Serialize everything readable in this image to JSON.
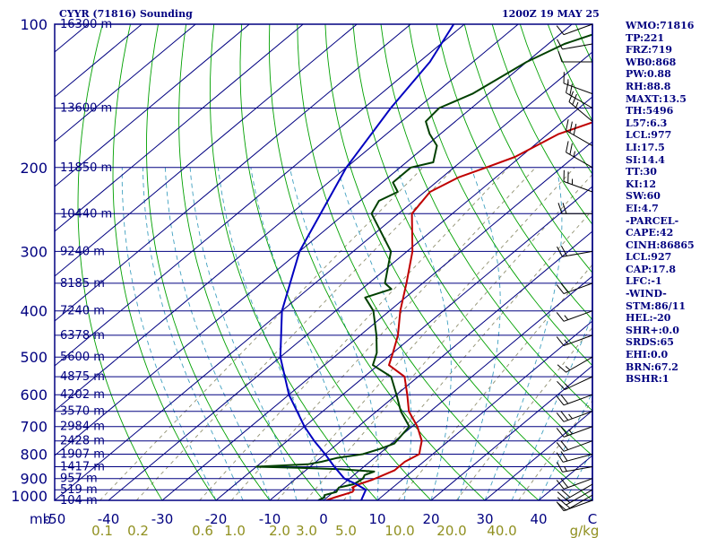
{
  "header": {
    "station": "CYYR (71816) Sounding",
    "time": "1200Z 19 MAY 25"
  },
  "indices": [
    "WMO:71816",
    "TP:221",
    "FRZ:719",
    "WB0:868",
    "PW:0.88",
    "RH:88.8",
    "MAXT:13.5",
    "TH:5496",
    "L57:6.3",
    "LCL:977",
    "LI:17.5",
    "SI:14.4",
    "TT:30",
    "KI:12",
    "SW:60",
    "EI:4.7",
    "-PARCEL-",
    "CAPE:42",
    "CINH:86865",
    "LCL:927",
    "CAP:17.8",
    "LFC:-1",
    "-WIND-",
    "STM:86/11",
    "HEL:-20",
    "SHR+:0.0",
    "SRDS:65",
    "EHI:0.0",
    "BRN:67.2",
    "BSHR:1"
  ],
  "colors": {
    "axes": "#000080",
    "isobar": "#000080",
    "isotherm": "#000080",
    "dry_adiabat": "#00a000",
    "moist_adiabat": "#40a0c0",
    "mixing_ratio": "#909070",
    "temperature": "#c00000",
    "dewpoint": "#004000",
    "parcel": "#0000c0",
    "wind": "#000000",
    "mixing_label": "#909020"
  },
  "chart_data": {
    "type": "line",
    "title": "CYYR (71816) Sounding",
    "xlabel": "C",
    "ylabel": "mb",
    "xlim": [
      -50,
      50
    ],
    "ylim": [
      1000,
      100
    ],
    "y_scale": "log",
    "grid": true,
    "pressure_ticks": [
      100,
      200,
      300,
      400,
      500,
      600,
      700,
      800,
      900,
      1000
    ],
    "temperature_ticks": [
      -50,
      -40,
      -30,
      -20,
      -10,
      0,
      10,
      20,
      30,
      40
    ],
    "mixing_ratio_ticks": [
      "0.1",
      "0.2",
      "0.6",
      "1.0",
      "2.0",
      "3.0",
      "5.0",
      "10.0",
      "20.0",
      "40.0",
      "g/kg"
    ],
    "mixing_ratio_values": [
      0.1,
      0.2,
      0.6,
      1.0,
      2.0,
      3.0,
      5.0,
      10.0,
      20.0,
      40.0
    ],
    "height_labels": [
      {
        "p": 1000,
        "label": "104 m"
      },
      {
        "p": 950,
        "label": "519 m"
      },
      {
        "p": 900,
        "label": "957 m"
      },
      {
        "p": 850,
        "label": "1417 m"
      },
      {
        "p": 800,
        "label": "1907 m"
      },
      {
        "p": 750,
        "label": "2428 m"
      },
      {
        "p": 700,
        "label": "2984 m"
      },
      {
        "p": 650,
        "label": "3570 m"
      },
      {
        "p": 600,
        "label": "4202 m"
      },
      {
        "p": 550,
        "label": "4875 m"
      },
      {
        "p": 500,
        "label": "5600 m"
      },
      {
        "p": 450,
        "label": "6378 m"
      },
      {
        "p": 400,
        "label": "7240 m"
      },
      {
        "p": 350,
        "label": "8185 m"
      },
      {
        "p": 300,
        "label": "9240 m"
      },
      {
        "p": 250,
        "label": "10440 m"
      },
      {
        "p": 200,
        "label": "11850 m"
      },
      {
        "p": 150,
        "label": "13600 m"
      },
      {
        "p": 100,
        "label": "16300 m"
      }
    ],
    "series": [
      {
        "key": "temperature",
        "points": [
          [
            1000,
            0.5
          ],
          [
            985,
            1.5
          ],
          [
            960,
            3.5
          ],
          [
            950,
            3.3
          ],
          [
            940,
            2.5
          ],
          [
            925,
            3.0
          ],
          [
            905,
            4.5
          ],
          [
            885,
            5.5
          ],
          [
            865,
            6.5
          ],
          [
            830,
            6.5
          ],
          [
            800,
            7.5
          ],
          [
            780,
            6.5
          ],
          [
            750,
            5.0
          ],
          [
            700,
            1.0
          ],
          [
            650,
            -4.0
          ],
          [
            600,
            -8.0
          ],
          [
            550,
            -12.5
          ],
          [
            520,
            -18.0
          ],
          [
            490,
            -20.0
          ],
          [
            450,
            -23.0
          ],
          [
            400,
            -28.0
          ],
          [
            350,
            -33.0
          ],
          [
            300,
            -39.0
          ],
          [
            250,
            -47.5
          ],
          [
            225,
            -49.0
          ],
          [
            210,
            -47.0
          ],
          [
            200,
            -44.0
          ],
          [
            190,
            -41.0
          ],
          [
            170,
            -38.0
          ],
          [
            160,
            -34.0
          ],
          [
            150,
            -34.0
          ],
          [
            140,
            -30.5
          ],
          [
            130,
            -29.0
          ],
          [
            120,
            -28.0
          ],
          [
            115,
            -28.0
          ],
          [
            110,
            -26.0
          ],
          [
            103,
            -26.5
          ],
          [
            100,
            -26.0
          ]
        ]
      },
      {
        "key": "dewpoint",
        "points": [
          [
            1000,
            -1.0
          ],
          [
            985,
            -0.5
          ],
          [
            975,
            -1.0
          ],
          [
            960,
            0.5
          ],
          [
            940,
            0.0
          ],
          [
            925,
            2.0
          ],
          [
            900,
            2.5
          ],
          [
            885,
            2.0
          ],
          [
            870,
            3.0
          ],
          [
            860,
            -4.0
          ],
          [
            855,
            -11.0
          ],
          [
            850,
            -20.0
          ],
          [
            840,
            -11.0
          ],
          [
            830,
            -9.0
          ],
          [
            815,
            -7.0
          ],
          [
            800,
            -3.0
          ],
          [
            780,
            -1.0
          ],
          [
            760,
            0.5
          ],
          [
            700,
            -0.5
          ],
          [
            650,
            -5.5
          ],
          [
            600,
            -10.0
          ],
          [
            550,
            -15.0
          ],
          [
            520,
            -21.0
          ],
          [
            490,
            -23.0
          ],
          [
            450,
            -27.0
          ],
          [
            400,
            -33.0
          ],
          [
            375,
            -37.5
          ],
          [
            360,
            -34.5
          ],
          [
            350,
            -37.0
          ],
          [
            300,
            -43.0
          ],
          [
            250,
            -55.0
          ],
          [
            235,
            -56.5
          ],
          [
            225,
            -55.0
          ],
          [
            215,
            -58.0
          ],
          [
            200,
            -58.0
          ],
          [
            195,
            -55.0
          ],
          [
            180,
            -58.0
          ],
          [
            170,
            -62.0
          ],
          [
            160,
            -65.5
          ],
          [
            150,
            -66.0
          ],
          [
            140,
            -63.0
          ],
          [
            120,
            -60.0
          ],
          [
            110,
            -57.0
          ],
          [
            103,
            -52.5
          ],
          [
            100,
            -51.0
          ]
        ]
      },
      {
        "key": "parcel",
        "points": [
          [
            1000,
            7.0
          ],
          [
            950,
            5.5
          ],
          [
            925,
            2.5
          ],
          [
            900,
            -1.0
          ],
          [
            850,
            -5.5
          ],
          [
            800,
            -10.0
          ],
          [
            750,
            -15.0
          ],
          [
            700,
            -20.0
          ],
          [
            600,
            -30.0
          ],
          [
            500,
            -40.0
          ],
          [
            400,
            -50.0
          ],
          [
            300,
            -60.0
          ],
          [
            200,
            -70.0
          ],
          [
            150,
            -75.0
          ],
          [
            120,
            -78.0
          ],
          [
            100,
            -82.0
          ]
        ]
      }
    ],
    "winds": [
      {
        "p": 1000,
        "dir": 250,
        "spd": 12
      },
      {
        "p": 975,
        "dir": 240,
        "spd": 15
      },
      {
        "p": 950,
        "dir": 240,
        "spd": 18
      },
      {
        "p": 925,
        "dir": 240,
        "spd": 20
      },
      {
        "p": 900,
        "dir": 250,
        "spd": 20
      },
      {
        "p": 850,
        "dir": 260,
        "spd": 15
      },
      {
        "p": 800,
        "dir": 255,
        "spd": 20
      },
      {
        "p": 750,
        "dir": 250,
        "spd": 20
      },
      {
        "p": 700,
        "dir": 250,
        "spd": 25
      },
      {
        "p": 650,
        "dir": 250,
        "spd": 25
      },
      {
        "p": 600,
        "dir": 250,
        "spd": 20
      },
      {
        "p": 550,
        "dir": 245,
        "spd": 15
      },
      {
        "p": 500,
        "dir": 240,
        "spd": 15
      },
      {
        "p": 450,
        "dir": 250,
        "spd": 15
      },
      {
        "p": 400,
        "dir": 250,
        "spd": 15
      },
      {
        "p": 350,
        "dir": 250,
        "spd": 20
      },
      {
        "p": 300,
        "dir": 260,
        "spd": 20
      },
      {
        "p": 250,
        "dir": 270,
        "spd": 20
      },
      {
        "p": 225,
        "dir": 290,
        "spd": 25
      },
      {
        "p": 200,
        "dir": 300,
        "spd": 25
      },
      {
        "p": 180,
        "dir": 300,
        "spd": 30
      },
      {
        "p": 160,
        "dir": 310,
        "spd": 25
      },
      {
        "p": 150,
        "dir": 300,
        "spd": 20
      },
      {
        "p": 140,
        "dir": 290,
        "spd": 15
      },
      {
        "p": 120,
        "dir": 270,
        "spd": 10
      },
      {
        "p": 110,
        "dir": 260,
        "spd": 10
      },
      {
        "p": 100,
        "dir": 250,
        "spd": 10
      }
    ]
  }
}
